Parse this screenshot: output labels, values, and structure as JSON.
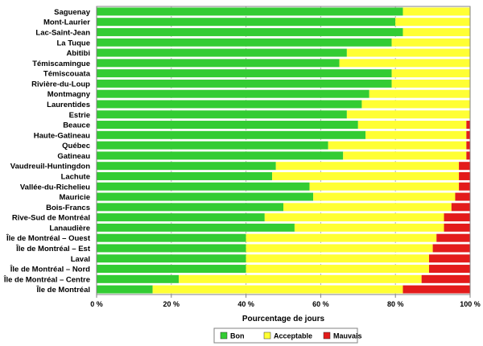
{
  "chart_data": {
    "type": "bar",
    "orientation": "horizontal",
    "stacked": true,
    "categories": [
      "Saguenay",
      "Mont-Laurier",
      "Lac-Saint-Jean",
      "La Tuque",
      "Abitibi",
      "Témiscamingue",
      "Témiscouata",
      "Rivière-du-Loup",
      "Montmagny",
      "Laurentides",
      "Estrie",
      "Beauce",
      "Haute-Gatineau",
      "Québec",
      "Gatineau",
      "Vaudreuil-Huntingdon",
      "Lachute",
      "Vallée-du-Richelieu",
      "Mauricie",
      "Bois-Francs",
      "Rive-Sud de Montréal",
      "Lanaudière",
      "Île de Montréal – Ouest",
      "Île de Montréal – Est",
      "Laval",
      "Île de Montréal – Nord",
      "Île de Montréal – Centre",
      "Île de Montréal"
    ],
    "series": [
      {
        "name": "Bon",
        "color": "#33cc33",
        "values": [
          82,
          80,
          82,
          79,
          67,
          65,
          79,
          79,
          73,
          71,
          67,
          70,
          72,
          62,
          66,
          48,
          47,
          57,
          58,
          50,
          45,
          53,
          40,
          40,
          40,
          40,
          22,
          15
        ]
      },
      {
        "name": "Acceptable",
        "color": "#ffff33",
        "values": [
          18,
          20,
          18,
          21,
          33,
          35,
          21,
          21,
          27,
          29,
          33,
          29,
          27,
          37,
          33,
          49,
          50,
          40,
          38,
          45,
          48,
          40,
          51,
          50,
          49,
          49,
          65,
          67
        ]
      },
      {
        "name": "Mauvais",
        "color": "#e31b1b",
        "values": [
          0,
          0,
          0,
          0,
          0.5,
          0.4,
          0.3,
          0.4,
          0.6,
          0.7,
          0.9,
          1,
          1,
          1.5,
          2,
          3,
          3,
          3.5,
          4,
          5,
          7.5,
          7.5,
          9,
          10,
          11.5,
          11.5,
          14,
          18.5
        ]
      }
    ],
    "xlim": [
      0,
      100
    ],
    "x_ticks": [
      "0 %",
      "20 %",
      "40 %",
      "60 %",
      "80 %",
      "100 %"
    ],
    "xlabel": "Pourcentage de jours",
    "ylabel": "",
    "grid": "vertical",
    "legend": "bottom"
  }
}
